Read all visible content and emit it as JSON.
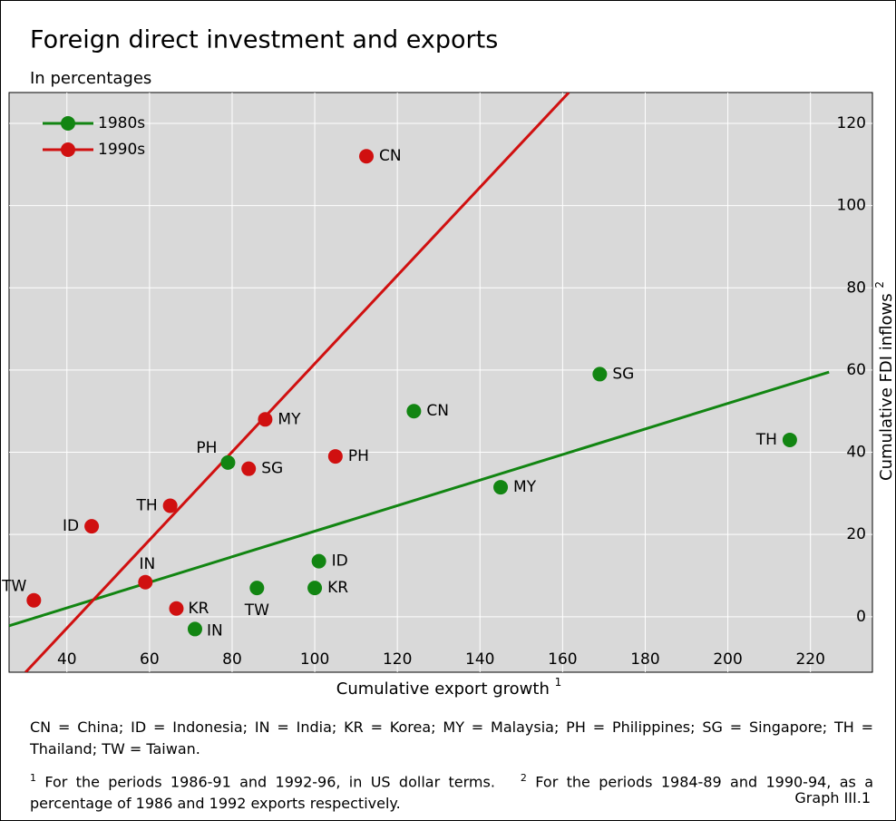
{
  "chart_data": {
    "type": "scatter",
    "title": "Foreign direct investment and exports",
    "subtitle": "In percentages",
    "xlabel": "Cumulative export growth",
    "xlabel_note": "1",
    "ylabel": "Cumulative FDI inflows",
    "ylabel_note": "2",
    "xlim": [
      26,
      235
    ],
    "ylim": [
      -13.5,
      127.5
    ],
    "xticks": [
      40,
      60,
      80,
      100,
      120,
      140,
      160,
      180,
      200,
      220
    ],
    "yticks": [
      0,
      20,
      40,
      60,
      80,
      100,
      120
    ],
    "grid": true,
    "legend": "upper left",
    "series": [
      {
        "name": "1980s",
        "color": "#128512",
        "labels": [
          "CN",
          "SG",
          "TH",
          "MY",
          "PH",
          "ID",
          "KR",
          "TW",
          "IN"
        ],
        "x": [
          124,
          169,
          215,
          145,
          79,
          101,
          100,
          86,
          71
        ],
        "values": [
          50,
          59,
          43,
          31.5,
          37.5,
          13.5,
          7,
          7,
          -3
        ],
        "trend_line": {
          "x": [
            26,
            224.5
          ],
          "y": [
            -2.2,
            59.5
          ]
        }
      },
      {
        "name": "1990s",
        "color": "#d01010",
        "labels": [
          "CN",
          "MY",
          "SG",
          "PH",
          "TH",
          "ID",
          "IN",
          "KR",
          "TW"
        ],
        "x": [
          112.5,
          88,
          84,
          105,
          65,
          46,
          59,
          66.5,
          32
        ],
        "values": [
          112,
          48,
          36,
          39,
          27,
          22,
          8.4,
          2,
          4
        ],
        "trend_line": {
          "x": [
            30,
            161.5
          ],
          "y": [
            -13.5,
            127.5
          ]
        }
      }
    ],
    "footnote_abbrev": "CN = China; ID = Indonesia; IN = India; KR = Korea; MY = Malaysia; PH = Philippines; SG = Singapore; TH = Thailand; TW = Taiwan.",
    "footnotes": [
      {
        "mark": "1",
        "text": "For the periods 1986-91 and 1992-96, in US dollar terms."
      },
      {
        "mark": "2",
        "text": "For the periods 1984-89 and 1990-94, as a percentage of 1986 and 1992 exports respectively."
      }
    ],
    "source": "Graph III.1"
  }
}
